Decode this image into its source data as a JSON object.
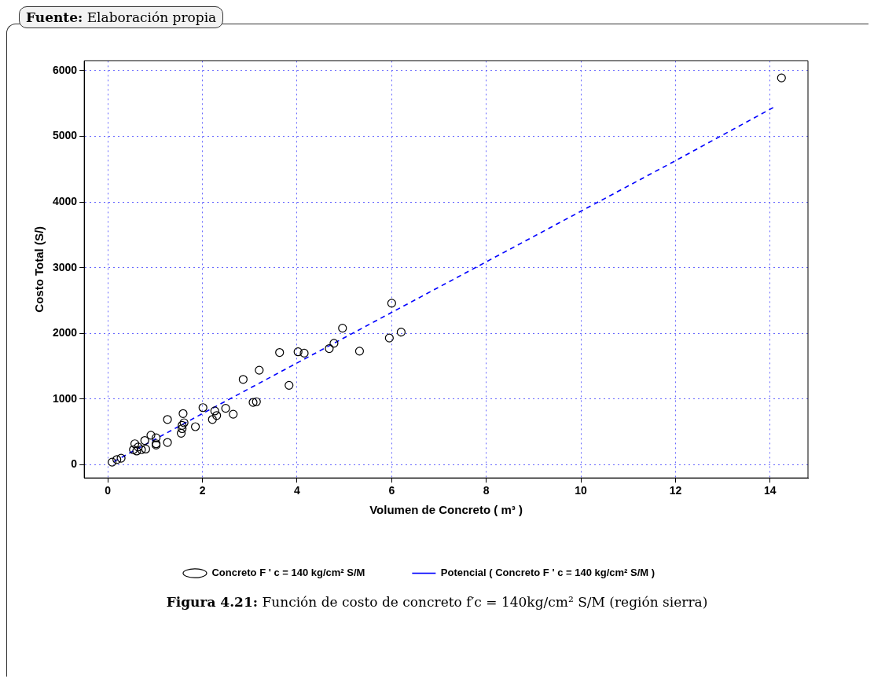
{
  "chart_data": {
    "type": "scatter",
    "xlabel": "Volumen de Concreto ( m³ )",
    "ylabel": "Costo Total (S/)",
    "xlim": [
      -0.5,
      14.8
    ],
    "xticks": [
      0,
      2,
      4,
      6,
      8,
      10,
      12,
      14
    ],
    "ylim": [
      -200,
      6150
    ],
    "yticks": [
      0,
      1000,
      2000,
      3000,
      4000,
      5000,
      6000
    ],
    "grid": true,
    "legend": "bottom",
    "annotations": [
      "Fuente: Elaboración propia",
      "Figura 4.21: Función de costo de concreto f′c = 140kg/cm² S/M (región sierra)"
    ],
    "series": [
      {
        "name": "Concreto F ' c = 140 kg/cm² S/M",
        "type": "scatter",
        "color": "#000000",
        "marker": "circle",
        "x": [
          0.09,
          0.19,
          0.28,
          0.54,
          0.57,
          0.61,
          0.64,
          0.71,
          0.78,
          0.8,
          0.91,
          1.02,
          1.02,
          1.02,
          1.26,
          1.26,
          1.55,
          1.57,
          1.57,
          1.59,
          1.61,
          1.85,
          2.01,
          2.21,
          2.26,
          2.3,
          2.49,
          2.65,
          2.86,
          3.07,
          3.14,
          3.2,
          3.63,
          3.83,
          4.02,
          4.15,
          4.68,
          4.78,
          4.96,
          5.32,
          5.95,
          6.0,
          6.2,
          14.24
        ],
        "values": [
          40,
          80,
          100,
          230,
          320,
          210,
          270,
          230,
          370,
          240,
          450,
          410,
          320,
          300,
          340,
          690,
          480,
          550,
          600,
          780,
          640,
          580,
          870,
          690,
          820,
          750,
          860,
          770,
          1300,
          950,
          960,
          1440,
          1710,
          1210,
          1720,
          1700,
          1770,
          1850,
          2080,
          1730,
          1930,
          2460,
          2020,
          5890
        ]
      },
      {
        "name": "Potencial ( Concreto F ' c = 140 kg/cm² S/M )",
        "type": "line",
        "color": "#0000ff",
        "line_style": "dashed",
        "marker": "none",
        "x": [
          0.13,
          2,
          4,
          6,
          8,
          10,
          12,
          14.12
        ],
        "values": [
          50,
          780,
          1550,
          2320,
          3090,
          3860,
          4630,
          5460
        ]
      }
    ]
  }
}
